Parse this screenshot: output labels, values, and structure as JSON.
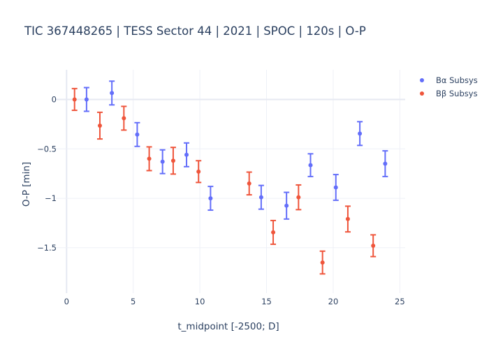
{
  "chart_data": {
    "type": "scatter",
    "title": "TIC 367448265 | TESS Sector 44 | 2021 | SPOC | 120s | O-P",
    "xlabel": "t_midpoint [-2500; D]",
    "ylabel": "O-P [min]",
    "xlim": [
      -0.8,
      25.4
    ],
    "ylim": [
      -1.96,
      0.3
    ],
    "xticks": [
      0,
      5,
      10,
      15,
      20,
      25
    ],
    "xtick_labels": [
      "0",
      "5",
      "10",
      "15",
      "20",
      "25"
    ],
    "yticks": [
      0,
      -0.5,
      -1,
      -1.5
    ],
    "ytick_labels": [
      "0",
      "−0.5",
      "−1",
      "−1.5"
    ],
    "grid": true,
    "legend_position": "top-right",
    "series": [
      {
        "name": "Bα Subsys",
        "color": "#636efa",
        "points": [
          {
            "x": 1.5,
            "y": 0.0,
            "err": 0.12
          },
          {
            "x": 3.4,
            "y": 0.065,
            "err": 0.12
          },
          {
            "x": 5.3,
            "y": -0.355,
            "err": 0.12
          },
          {
            "x": 7.2,
            "y": -0.63,
            "err": 0.12
          },
          {
            "x": 9.0,
            "y": -0.56,
            "err": 0.12
          },
          {
            "x": 10.8,
            "y": -1.0,
            "err": 0.12
          },
          {
            "x": 14.6,
            "y": -0.99,
            "err": 0.12
          },
          {
            "x": 16.5,
            "y": -1.075,
            "err": 0.135
          },
          {
            "x": 18.3,
            "y": -0.665,
            "err": 0.115
          },
          {
            "x": 20.2,
            "y": -0.89,
            "err": 0.13
          },
          {
            "x": 22.0,
            "y": -0.345,
            "err": 0.12
          },
          {
            "x": 23.9,
            "y": -0.65,
            "err": 0.13
          }
        ]
      },
      {
        "name": "Bβ Subsys",
        "color": "#ef553b",
        "points": [
          {
            "x": 0.6,
            "y": 0.0,
            "err": 0.11
          },
          {
            "x": 2.5,
            "y": -0.265,
            "err": 0.135
          },
          {
            "x": 4.3,
            "y": -0.19,
            "err": 0.12
          },
          {
            "x": 6.2,
            "y": -0.6,
            "err": 0.12
          },
          {
            "x": 8.0,
            "y": -0.62,
            "err": 0.135
          },
          {
            "x": 9.9,
            "y": -0.73,
            "err": 0.11
          },
          {
            "x": 13.7,
            "y": -0.85,
            "err": 0.115
          },
          {
            "x": 15.5,
            "y": -1.345,
            "err": 0.12
          },
          {
            "x": 17.4,
            "y": -0.99,
            "err": 0.125
          },
          {
            "x": 19.2,
            "y": -1.65,
            "err": 0.115
          },
          {
            "x": 21.1,
            "y": -1.21,
            "err": 0.13
          },
          {
            "x": 23.0,
            "y": -1.48,
            "err": 0.11
          }
        ]
      }
    ]
  }
}
